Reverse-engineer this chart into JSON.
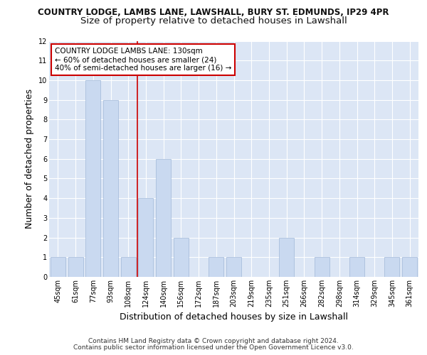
{
  "title_line1": "COUNTRY LODGE, LAMBS LANE, LAWSHALL, BURY ST. EDMUNDS, IP29 4PR",
  "title_line2": "Size of property relative to detached houses in Lawshall",
  "xlabel": "Distribution of detached houses by size in Lawshall",
  "ylabel": "Number of detached properties",
  "categories": [
    "45sqm",
    "61sqm",
    "77sqm",
    "93sqm",
    "108sqm",
    "124sqm",
    "140sqm",
    "156sqm",
    "172sqm",
    "187sqm",
    "203sqm",
    "219sqm",
    "235sqm",
    "251sqm",
    "266sqm",
    "282sqm",
    "298sqm",
    "314sqm",
    "329sqm",
    "345sqm",
    "361sqm"
  ],
  "values": [
    1,
    1,
    10,
    9,
    1,
    4,
    6,
    2,
    0,
    1,
    1,
    0,
    0,
    2,
    0,
    1,
    0,
    1,
    0,
    1,
    1
  ],
  "bar_color": "#c9d9f0",
  "bar_edge_color": "#a0b8d8",
  "vline_x_index": 5,
  "vline_color": "#cc0000",
  "annotation_text": "COUNTRY LODGE LAMBS LANE: 130sqm\n← 60% of detached houses are smaller (24)\n40% of semi-detached houses are larger (16) →",
  "annotation_box_color": "white",
  "annotation_box_edge": "#cc0000",
  "ylim": [
    0,
    12
  ],
  "yticks": [
    0,
    1,
    2,
    3,
    4,
    5,
    6,
    7,
    8,
    9,
    10,
    11,
    12
  ],
  "footer_line1": "Contains HM Land Registry data © Crown copyright and database right 2024.",
  "footer_line2": "Contains public sector information licensed under the Open Government Licence v3.0.",
  "bg_color": "#dce6f5",
  "grid_color": "#ffffff",
  "title_fontsize": 8.5,
  "subtitle_fontsize": 9.5,
  "axis_label_fontsize": 9,
  "tick_fontsize": 7,
  "footer_fontsize": 6.5,
  "annotation_fontsize": 7.5
}
